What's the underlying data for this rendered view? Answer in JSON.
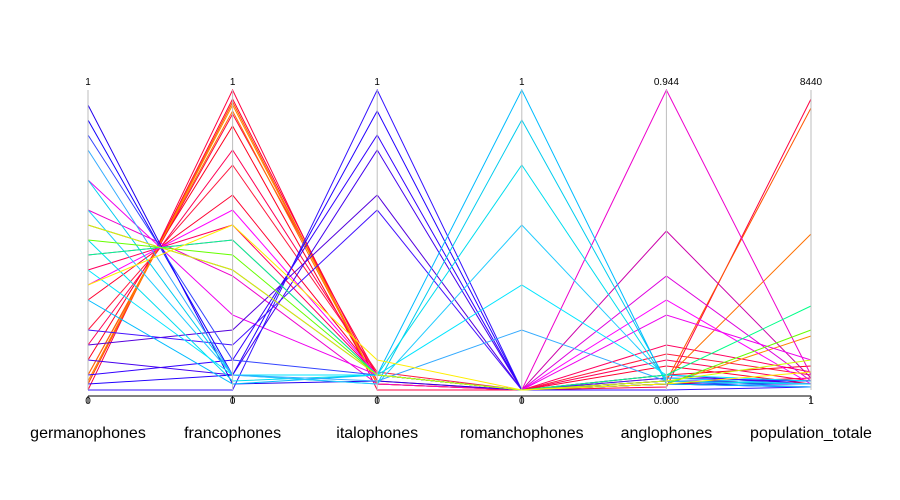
{
  "chart_data": {
    "type": "parallel_coordinates",
    "axes": [
      {
        "name": "germanophones",
        "min_label": "0",
        "max_label": "1",
        "min": 0,
        "max": 1
      },
      {
        "name": "francophones",
        "min_label": "0",
        "max_label": "1",
        "min": 0,
        "max": 1
      },
      {
        "name": "italophones",
        "min_label": "0",
        "max_label": "1",
        "min": 0,
        "max": 1
      },
      {
        "name": "romanchophones",
        "min_label": "0",
        "max_label": "1",
        "min": 0,
        "max": 1
      },
      {
        "name": "anglophones",
        "min_label": "0.000",
        "max_label": "0.944",
        "min": 0,
        "max": 0.944
      },
      {
        "name": "population_totale",
        "min_label": "1",
        "max_label": "8440",
        "min": 1,
        "max": 8440
      }
    ],
    "series": [
      {
        "color": "#ff0033",
        "values": [
          0.02,
          0.97,
          0.03,
          0.0,
          0.02,
          0.04
        ]
      },
      {
        "color": "#ff0044",
        "values": [
          0.05,
          0.92,
          0.05,
          0.0,
          0.03,
          0.02
        ]
      },
      {
        "color": "#ff0020",
        "values": [
          0.1,
          0.88,
          0.02,
          0.0,
          0.05,
          0.08
        ]
      },
      {
        "color": "#ff0055",
        "values": [
          0.15,
          0.8,
          0.05,
          0.0,
          0.1,
          0.03
        ]
      },
      {
        "color": "#ff1a40",
        "values": [
          0.2,
          0.75,
          0.06,
          0.0,
          0.12,
          0.05
        ]
      },
      {
        "color": "#ff0030",
        "values": [
          0.3,
          0.65,
          0.05,
          0.0,
          0.08,
          0.02
        ]
      },
      {
        "color": "#ff0060",
        "values": [
          0.4,
          0.55,
          0.05,
          0.0,
          0.15,
          0.06
        ]
      },
      {
        "color": "#ff0040",
        "values": [
          0.0,
          1.0,
          0.0,
          0.0,
          0.01,
          0.97
        ]
      },
      {
        "color": "#ff5500",
        "values": [
          0.02,
          0.96,
          0.02,
          0.0,
          0.03,
          0.94
        ]
      },
      {
        "color": "#ff7000",
        "values": [
          0.05,
          0.93,
          0.02,
          0.0,
          0.04,
          0.52
        ]
      },
      {
        "color": "#ff8800",
        "values": [
          0.03,
          0.95,
          0.02,
          0.0,
          0.02,
          0.18
        ]
      },
      {
        "color": "#ee00cc",
        "values": [
          0.6,
          0.38,
          0.02,
          0.0,
          1.0,
          0.05
        ]
      },
      {
        "color": "#cc00aa",
        "values": [
          0.55,
          0.4,
          0.05,
          0.0,
          0.53,
          0.04
        ]
      },
      {
        "color": "#dd00dd",
        "values": [
          0.45,
          0.5,
          0.05,
          0.0,
          0.38,
          0.03
        ]
      },
      {
        "color": "#ff00ff",
        "values": [
          0.35,
          0.6,
          0.05,
          0.0,
          0.3,
          0.02
        ]
      },
      {
        "color": "#ee00ee",
        "values": [
          0.7,
          0.25,
          0.05,
          0.0,
          0.25,
          0.1
        ]
      },
      {
        "color": "#3300ff",
        "values": [
          0.05,
          0.1,
          0.85,
          0.0,
          0.02,
          0.02
        ]
      },
      {
        "color": "#4400ee",
        "values": [
          0.1,
          0.05,
          0.8,
          0.0,
          0.03,
          0.03
        ]
      },
      {
        "color": "#2200ff",
        "values": [
          0.02,
          0.05,
          0.93,
          0.0,
          0.02,
          0.01
        ]
      },
      {
        "color": "#5500dd",
        "values": [
          0.15,
          0.2,
          0.65,
          0.0,
          0.05,
          0.02
        ]
      },
      {
        "color": "#3311ff",
        "values": [
          0.0,
          0.0,
          1.0,
          0.0,
          0.0,
          0.01
        ]
      },
      {
        "color": "#4411ff",
        "values": [
          0.2,
          0.15,
          0.6,
          0.0,
          0.04,
          0.03
        ]
      },
      {
        "color": "#2200ee",
        "values": [
          0.95,
          0.02,
          0.03,
          0.0,
          0.02,
          0.02
        ]
      },
      {
        "color": "#1100ff",
        "values": [
          0.9,
          0.05,
          0.05,
          0.0,
          0.02,
          0.01
        ]
      },
      {
        "color": "#3344ff",
        "values": [
          0.85,
          0.1,
          0.05,
          0.0,
          0.03,
          0.02
        ]
      },
      {
        "color": "#00ccee",
        "values": [
          0.7,
          0.05,
          0.02,
          0.9,
          0.03,
          0.02
        ]
      },
      {
        "color": "#00bbff",
        "values": [
          0.3,
          0.02,
          0.05,
          1.0,
          0.02,
          0.01
        ]
      },
      {
        "color": "#00ddee",
        "values": [
          0.5,
          0.03,
          0.05,
          0.75,
          0.03,
          0.02
        ]
      },
      {
        "color": "#22ccff",
        "values": [
          0.6,
          0.05,
          0.02,
          0.55,
          0.04,
          0.02
        ]
      },
      {
        "color": "#00e5ff",
        "values": [
          0.4,
          0.05,
          0.05,
          0.35,
          0.05,
          0.03
        ]
      },
      {
        "color": "#33aaff",
        "values": [
          0.8,
          0.05,
          0.03,
          0.2,
          0.03,
          0.01
        ]
      },
      {
        "color": "#66ff00",
        "values": [
          0.5,
          0.45,
          0.05,
          0.0,
          0.02,
          0.2
        ]
      },
      {
        "color": "#00ff88",
        "values": [
          0.45,
          0.5,
          0.05,
          0.0,
          0.05,
          0.28
        ]
      },
      {
        "color": "#ccff00",
        "values": [
          0.55,
          0.4,
          0.05,
          0.0,
          0.03,
          0.1
        ]
      },
      {
        "color": "#ffee00",
        "values": [
          0.35,
          0.55,
          0.1,
          0.0,
          0.02,
          0.06
        ]
      }
    ]
  }
}
